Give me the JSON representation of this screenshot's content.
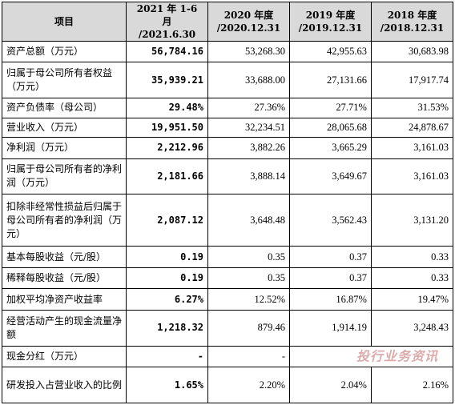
{
  "header": {
    "item": "项目",
    "periods": [
      {
        "line1": "2021 年 1-6 月",
        "line2": "/2021.6.30"
      },
      {
        "line1": "2020 年度",
        "line2": "/2020.12.31"
      },
      {
        "line1": "2019 年度",
        "line2": "/2019.12.31"
      },
      {
        "line1": "2018 年度",
        "line2": "/2018.12.31"
      }
    ]
  },
  "rows": [
    {
      "label": "资产总额（万元）",
      "values": [
        "56,784.16",
        "53,268.30",
        "42,955.63",
        "30,683.98"
      ]
    },
    {
      "label": "归属于母公司所有者权益（万元）",
      "values": [
        "35,939.21",
        "33,688.00",
        "27,131.66",
        "17,917.74"
      ]
    },
    {
      "label": "资产负债率（母公司）",
      "values": [
        "29.48%",
        "27.36%",
        "27.71%",
        "31.53%"
      ]
    },
    {
      "label": "营业收入（万元）",
      "values": [
        "19,951.50",
        "32,234.51",
        "28,065.68",
        "24,878.67"
      ]
    },
    {
      "label": "净利润（万元）",
      "values": [
        "2,212.96",
        "3,882.26",
        "3,665.29",
        "3,161.03"
      ]
    },
    {
      "label": "归属于母公司所有者的净利润（万元）",
      "values": [
        "2,181.66",
        "3,888.14",
        "3,649.67",
        "3,161.03"
      ]
    },
    {
      "label": "扣除非经常性损益后归属于母公司所有者的净利润（万元）",
      "values": [
        "2,087.12",
        "3,648.48",
        "3,562.43",
        "3,131.20"
      ]
    },
    {
      "label": "基本每股收益（元/股）",
      "values": [
        "0.19",
        "0.35",
        "0.37",
        "0.33"
      ]
    },
    {
      "label": "稀释每股收益（元/股）",
      "values": [
        "0.19",
        "0.35",
        "0.37",
        "0.33"
      ]
    },
    {
      "label": "加权平均净资产收益率",
      "values": [
        "6.27%",
        "12.52%",
        "16.87%",
        "19.47%"
      ]
    },
    {
      "label": "经营活动产生的现金流量净额",
      "values": [
        "1,218.32",
        "879.46",
        "1,914.19",
        "3,248.43"
      ]
    },
    {
      "label": "现金分红（万元）",
      "values": [
        "-",
        "-",
        "",
        ""
      ]
    },
    {
      "label": "研发投入占营业收入的比例",
      "values": [
        "1.65%",
        "2.20%",
        "2.04%",
        "2.16%"
      ]
    }
  ],
  "watermark": "投行业务资讯"
}
